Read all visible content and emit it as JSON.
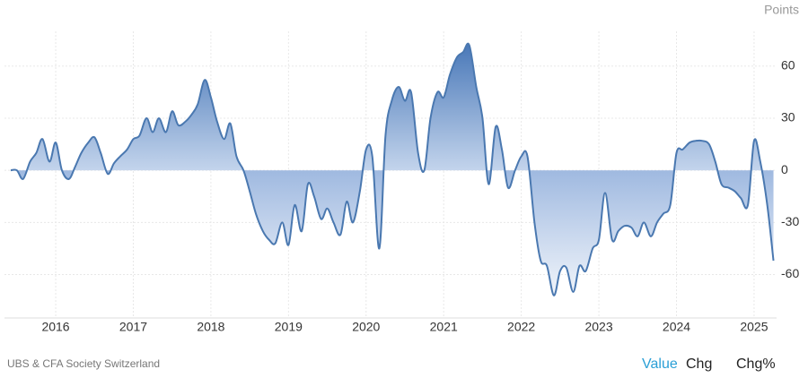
{
  "chart_data": {
    "type": "area",
    "y_label": "Points",
    "x": [
      2015.42,
      2015.5,
      2015.58,
      2015.67,
      2015.75,
      2015.83,
      2015.92,
      2016.0,
      2016.08,
      2016.17,
      2016.25,
      2016.33,
      2016.42,
      2016.5,
      2016.58,
      2016.67,
      2016.75,
      2016.83,
      2016.92,
      2017.0,
      2017.08,
      2017.17,
      2017.25,
      2017.33,
      2017.42,
      2017.5,
      2017.58,
      2017.67,
      2017.75,
      2017.83,
      2017.92,
      2018.0,
      2018.08,
      2018.17,
      2018.25,
      2018.33,
      2018.42,
      2018.5,
      2018.58,
      2018.67,
      2018.75,
      2018.83,
      2018.92,
      2019.0,
      2019.08,
      2019.17,
      2019.25,
      2019.33,
      2019.42,
      2019.5,
      2019.58,
      2019.67,
      2019.75,
      2019.83,
      2019.92,
      2020.0,
      2020.08,
      2020.17,
      2020.25,
      2020.33,
      2020.42,
      2020.5,
      2020.58,
      2020.67,
      2020.75,
      2020.83,
      2020.92,
      2021.0,
      2021.08,
      2021.17,
      2021.25,
      2021.33,
      2021.42,
      2021.5,
      2021.58,
      2021.67,
      2021.75,
      2021.83,
      2021.92,
      2022.0,
      2022.08,
      2022.17,
      2022.25,
      2022.33,
      2022.42,
      2022.5,
      2022.58,
      2022.67,
      2022.75,
      2022.83,
      2022.92,
      2023.0,
      2023.08,
      2023.17,
      2023.25,
      2023.33,
      2023.42,
      2023.5,
      2023.58,
      2023.67,
      2023.75,
      2023.83,
      2023.92,
      2024.0,
      2024.08,
      2024.17,
      2024.25,
      2024.33,
      2024.42,
      2024.5,
      2024.58,
      2024.67,
      2024.75,
      2024.83,
      2024.92,
      2025.0,
      2025.08,
      2025.17,
      2025.25
    ],
    "series": [
      {
        "name": "Value",
        "color": "#4a78b0",
        "values": [
          0,
          0,
          -5,
          5,
          10,
          18,
          5,
          16,
          0,
          -5,
          2,
          10,
          16,
          19,
          10,
          -2,
          4,
          8,
          12,
          18,
          20,
          30,
          22,
          30,
          22,
          34,
          26,
          28,
          32,
          38,
          52,
          42,
          28,
          18,
          27,
          8,
          0,
          -12,
          -25,
          -35,
          -40,
          -42,
          -30,
          -43,
          -20,
          -35,
          -8,
          -15,
          -28,
          -22,
          -30,
          -37,
          -18,
          -30,
          -12,
          12,
          8,
          -45,
          20,
          40,
          48,
          40,
          45,
          10,
          0,
          30,
          45,
          42,
          55,
          65,
          68,
          72,
          48,
          30,
          -8,
          25,
          12,
          -10,
          0,
          8,
          8,
          -30,
          -52,
          -55,
          -72,
          -58,
          -56,
          -70,
          -55,
          -58,
          -45,
          -40,
          -13,
          -40,
          -35,
          -32,
          -33,
          -38,
          -30,
          -38,
          -30,
          -25,
          -20,
          10,
          12,
          16,
          17,
          17,
          15,
          5,
          -8,
          -10,
          -12,
          -16,
          -20,
          17,
          5,
          -20,
          -52
        ]
      }
    ],
    "xlim": [
      2015.34,
      2025.29
    ],
    "xticks": [
      2016,
      2017,
      2018,
      2019,
      2020,
      2021,
      2022,
      2023,
      2024,
      2025
    ],
    "ylim": [
      -85,
      80
    ],
    "yticks": [
      60,
      30,
      0,
      -30,
      -60
    ],
    "grid": true
  },
  "footer": {
    "source": "UBS & CFA Society Switzerland",
    "tabs": [
      "Value",
      "Chg",
      "Chg%"
    ]
  }
}
